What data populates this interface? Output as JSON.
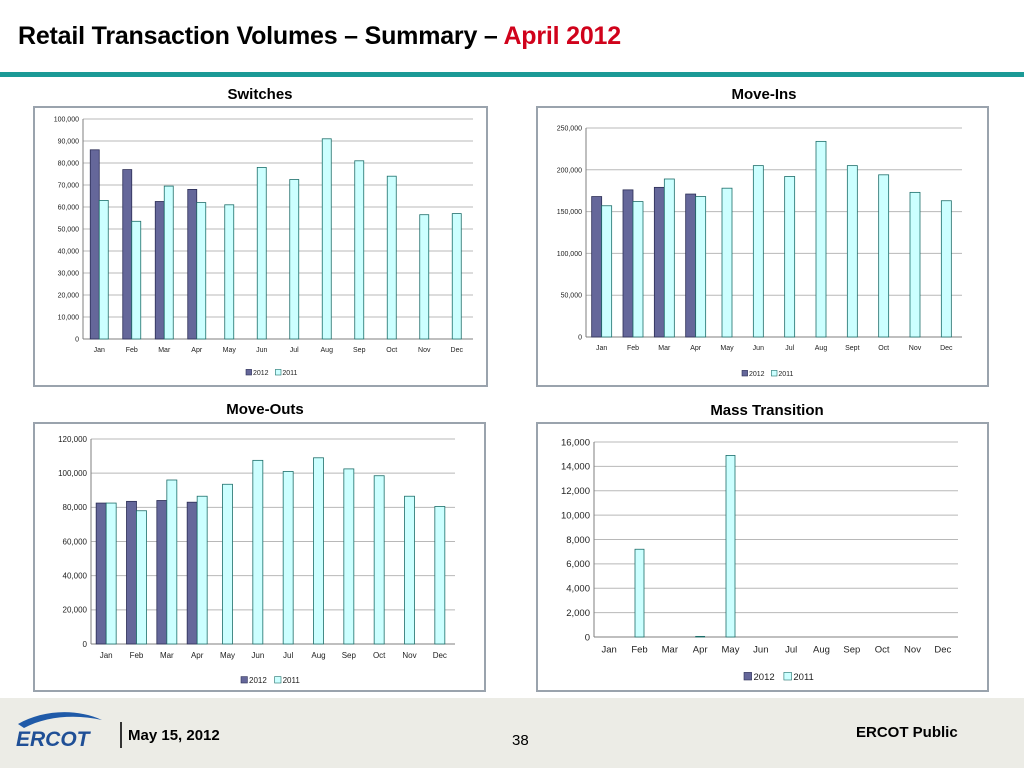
{
  "slide": {
    "title_main": "Retail Transaction Volumes – Summary – ",
    "title_accent": "April 2012",
    "footer_date": "May 15, 2012",
    "page_number": "38",
    "footer_right": "ERCOT Public",
    "logo_text": "ERCOT"
  },
  "colors": {
    "accent_red": "#d0021b",
    "rule_teal": "#1b9a96",
    "series_2012": "#65679a",
    "series_2011": "#ccffff"
  },
  "chart_data": [
    {
      "type": "bar",
      "title": "Switches",
      "categories": [
        "Jan",
        "Feb",
        "Mar",
        "Apr",
        "May",
        "Jun",
        "Jul",
        "Aug",
        "Sep",
        "Oct",
        "Nov",
        "Dec"
      ],
      "series": [
        {
          "name": "2012",
          "values": [
            86000,
            77000,
            62500,
            68000,
            null,
            null,
            null,
            null,
            null,
            null,
            null,
            null
          ]
        },
        {
          "name": "2011",
          "values": [
            63000,
            53500,
            69500,
            62000,
            61000,
            78000,
            72500,
            91000,
            81000,
            74000,
            56500,
            57000
          ]
        }
      ],
      "ylim": [
        0,
        100000
      ],
      "yticks": [
        "0",
        "10,000",
        "20,000",
        "30,000",
        "40,000",
        "50,000",
        "60,000",
        "70,000",
        "80,000",
        "90,000",
        "100,000"
      ],
      "legend": "bottom"
    },
    {
      "type": "bar",
      "title": "Move-Ins",
      "categories": [
        "Jan",
        "Feb",
        "Mar",
        "Apr",
        "May",
        "Jun",
        "Jul",
        "Aug",
        "Sept",
        "Oct",
        "Nov",
        "Dec"
      ],
      "series": [
        {
          "name": "2012",
          "values": [
            168000,
            176000,
            179000,
            171000,
            null,
            null,
            null,
            null,
            null,
            null,
            null,
            null
          ]
        },
        {
          "name": "2011",
          "values": [
            157000,
            162000,
            189000,
            168000,
            178000,
            205000,
            192000,
            234000,
            205000,
            194000,
            173000,
            163000
          ]
        }
      ],
      "ylim": [
        0,
        250000
      ],
      "yticks": [
        "0",
        "50,000",
        "100,000",
        "150,000",
        "200,000",
        "250,000"
      ],
      "legend": "bottom"
    },
    {
      "type": "bar",
      "title": "Move-Outs",
      "categories": [
        "Jan",
        "Feb",
        "Mar",
        "Apr",
        "May",
        "Jun",
        "Jul",
        "Aug",
        "Sep",
        "Oct",
        "Nov",
        "Dec"
      ],
      "series": [
        {
          "name": "2012",
          "values": [
            82500,
            83500,
            84000,
            83000,
            null,
            null,
            null,
            null,
            null,
            null,
            null,
            null
          ]
        },
        {
          "name": "2011",
          "values": [
            82500,
            78000,
            96000,
            86500,
            93500,
            107500,
            101000,
            109000,
            102500,
            98500,
            86500,
            80500
          ]
        }
      ],
      "ylim": [
        0,
        120000
      ],
      "yticks": [
        "0",
        "20,000",
        "40,000",
        "60,000",
        "80,000",
        "100,000",
        "120,000"
      ],
      "legend": "bottom"
    },
    {
      "type": "bar",
      "title": "Mass Transition",
      "categories": [
        "Jan",
        "Feb",
        "Mar",
        "Apr",
        "May",
        "Jun",
        "Jul",
        "Aug",
        "Sep",
        "Oct",
        "Nov",
        "Dec"
      ],
      "series": [
        {
          "name": "2012",
          "values": [
            null,
            null,
            null,
            null,
            null,
            null,
            null,
            null,
            null,
            null,
            null,
            null
          ]
        },
        {
          "name": "2011",
          "values": [
            0,
            7200,
            0,
            50,
            14900,
            0,
            0,
            0,
            0,
            0,
            0,
            0
          ]
        }
      ],
      "ylim": [
        0,
        16000
      ],
      "yticks": [
        "0",
        "2,000",
        "4,000",
        "6,000",
        "8,000",
        "10,000",
        "12,000",
        "14,000",
        "16,000"
      ],
      "legend": "bottom"
    }
  ]
}
